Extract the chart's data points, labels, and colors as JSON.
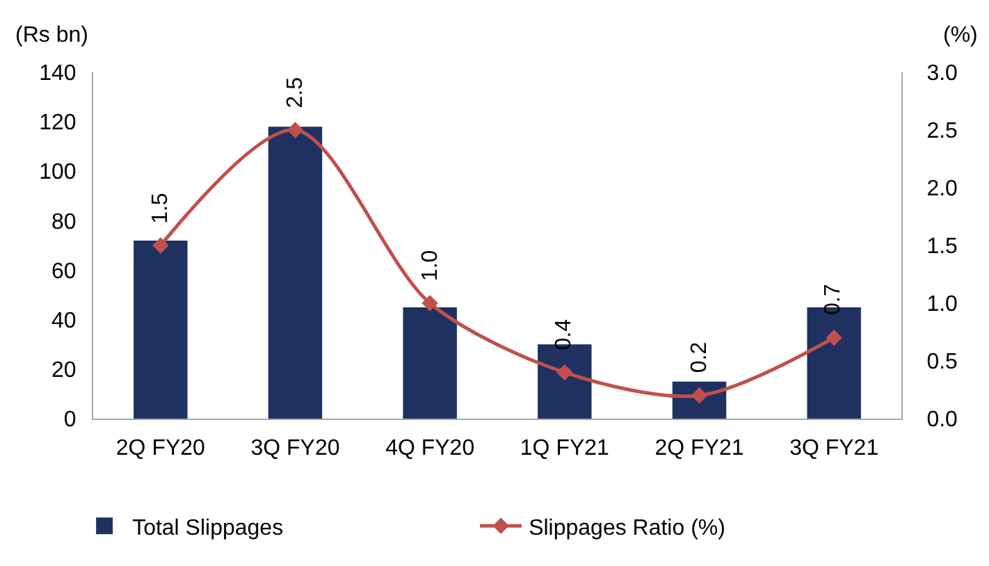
{
  "chart_data": {
    "type": "bar",
    "categories": [
      "2Q FY20",
      "3Q FY20",
      "4Q FY20",
      "1Q FY21",
      "2Q FY21",
      "3Q FY21"
    ],
    "series": [
      {
        "name": "Total Slippages",
        "color": "#1f3160",
        "values": [
          72,
          118,
          45,
          30,
          15,
          45
        ]
      },
      {
        "name": "Slippages Ratio (%)",
        "type": "line",
        "axis": "y2",
        "color": "#c0504d",
        "marker": "diamond",
        "values": [
          1.5,
          2.5,
          1.0,
          0.4,
          0.2,
          0.7
        ],
        "value_labels": [
          "1.5",
          "2.5",
          "1.0",
          "0.4",
          "0.2",
          "0.7"
        ]
      }
    ],
    "ylabel": "(Rs bn)",
    "y2label": "(%)",
    "ylim": [
      0,
      140
    ],
    "yticks": [
      0,
      20,
      40,
      60,
      80,
      100,
      120,
      140
    ],
    "y2lim": [
      0,
      3
    ],
    "y2ticks": [
      {
        "value": 0,
        "label": "0.0"
      },
      0.5,
      {
        "value": 1,
        "label": "1.0"
      },
      1.5,
      {
        "value": 2,
        "label": "2.0"
      },
      2.5,
      {
        "value": 3,
        "label": "3.0"
      }
    ],
    "legend": "bottom"
  }
}
